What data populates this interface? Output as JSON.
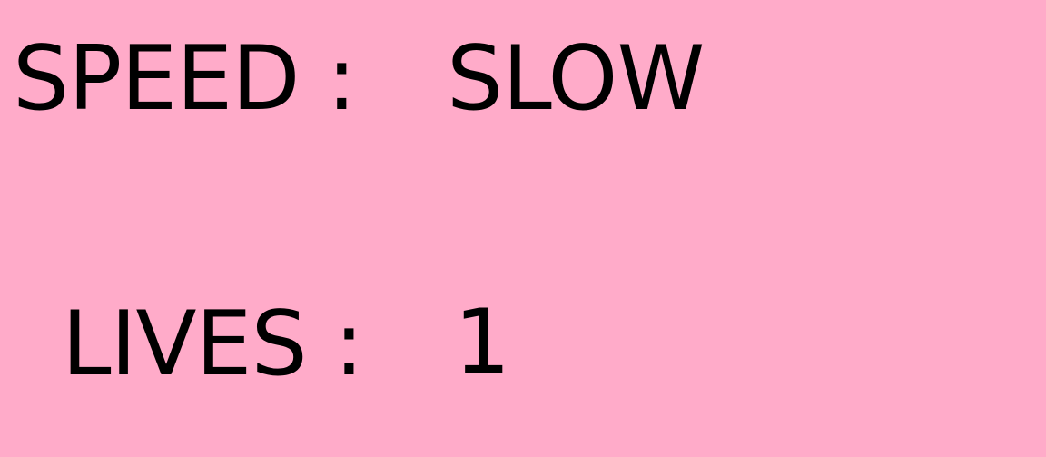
{
  "colors": {
    "background": "#ffabc9",
    "text": "#000000"
  },
  "stats": {
    "speed_label": "SPEED :",
    "speed_value": "SLOW",
    "lives_label": "LIVES :",
    "lives_value": "1"
  }
}
